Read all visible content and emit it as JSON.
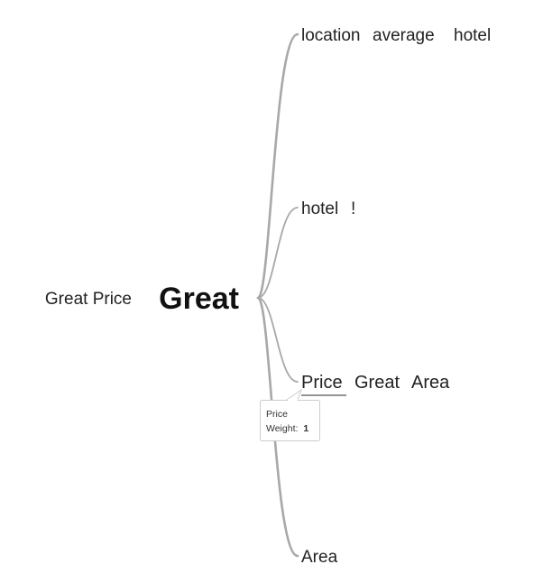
{
  "prefix": {
    "words": [
      "Great Price"
    ]
  },
  "root": {
    "word": "Great"
  },
  "suffix": {
    "branches": [
      {
        "words": [
          "location",
          "average",
          "hotel"
        ],
        "weight": 1
      },
      {
        "words": [
          "hotel",
          "!"
        ],
        "weight": 1
      },
      {
        "words": [
          "Price",
          "Great",
          "Area"
        ],
        "weight": 1
      },
      {
        "words": [
          "Area"
        ],
        "weight": 1
      }
    ]
  },
  "tooltip": {
    "term": "Price",
    "weight_label": "Weight:",
    "weight_value": "1"
  },
  "colors": {
    "branch": "#a8a8a8",
    "text": "#222222",
    "highlight": "#555555"
  }
}
